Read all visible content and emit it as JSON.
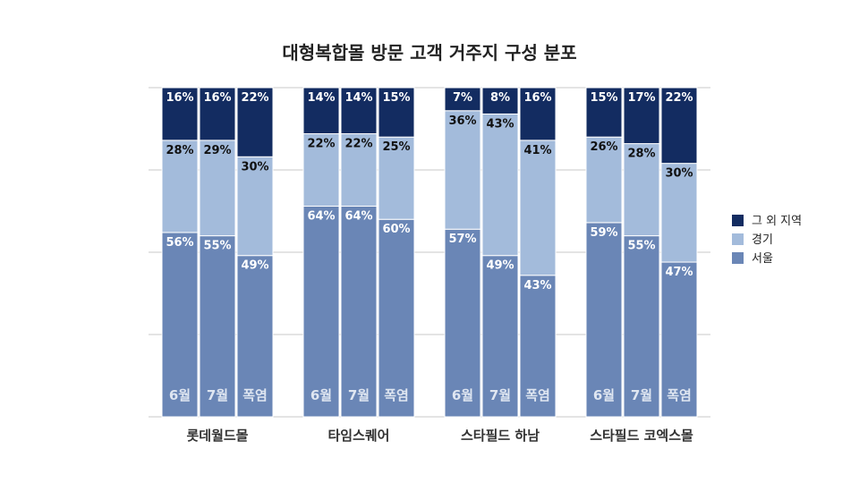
{
  "chart_data": {
    "type": "bar",
    "stacked": true,
    "percent": true,
    "title": "대형복합몰 방문 고객 거주지 구성 분포",
    "ylim": [
      0,
      100
    ],
    "grid": true,
    "legend": {
      "placement": "right",
      "entries": [
        "그 외 지역",
        "경기",
        "서울"
      ]
    },
    "series": [
      {
        "name": "서울",
        "color": "#6a86b6",
        "label_color": "#ffffff"
      },
      {
        "name": "경기",
        "color": "#a3bbdb",
        "label_color": "#111111"
      },
      {
        "name": "그 외 지역",
        "color": "#132c61",
        "label_color": "#ffffff"
      }
    ],
    "groups": [
      {
        "name": "롯데월드몰",
        "bars": [
          {
            "label": "6월",
            "values": [
              56,
              28,
              16
            ]
          },
          {
            "label": "7월",
            "values": [
              55,
              29,
              16
            ]
          },
          {
            "label": "폭염",
            "values": [
              49,
              30,
              22
            ]
          }
        ]
      },
      {
        "name": "타임스퀘어",
        "bars": [
          {
            "label": "6월",
            "values": [
              64,
              22,
              14
            ]
          },
          {
            "label": "7월",
            "values": [
              64,
              22,
              14
            ]
          },
          {
            "label": "폭염",
            "values": [
              60,
              25,
              15
            ]
          }
        ]
      },
      {
        "name": "스타필드 하남",
        "bars": [
          {
            "label": "6월",
            "values": [
              57,
              36,
              7
            ]
          },
          {
            "label": "7월",
            "values": [
              49,
              43,
              8
            ]
          },
          {
            "label": "폭염",
            "values": [
              43,
              41,
              16
            ]
          }
        ]
      },
      {
        "name": "스타필드 코엑스몰",
        "bars": [
          {
            "label": "6월",
            "values": [
              59,
              26,
              15
            ]
          },
          {
            "label": "7월",
            "values": [
              55,
              28,
              17
            ]
          },
          {
            "label": "폭염",
            "values": [
              47,
              30,
              22
            ]
          }
        ]
      }
    ]
  }
}
